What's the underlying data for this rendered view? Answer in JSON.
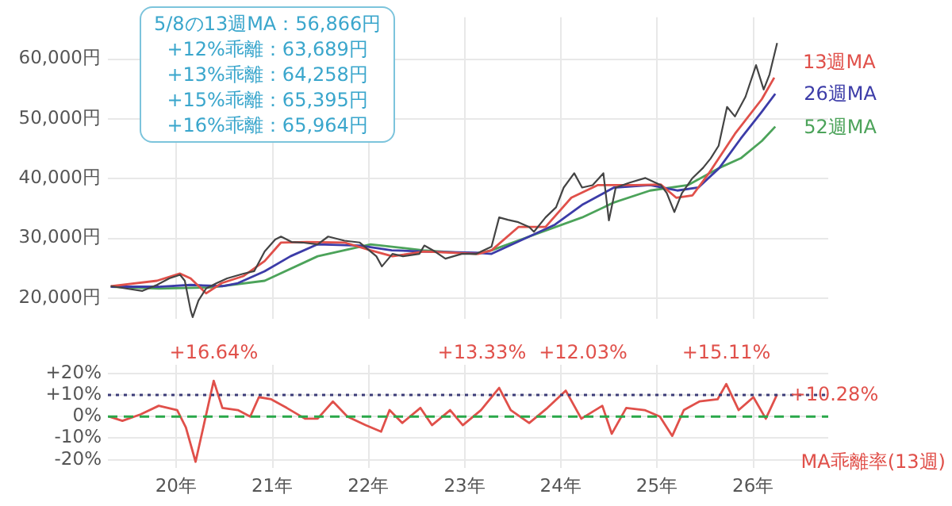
{
  "chart_data": [
    {
      "type": "line",
      "legend": false,
      "grid": true,
      "marker": "none",
      "tick_labels": "y",
      "annotations": [
        "5/8の13週MA：56,866円",
        "+12%乖離：63,689円",
        "+13%乖離：64,258円",
        "+15%乖離：65,395円",
        "+16%乖離：65,964円"
      ],
      "xlim": [
        "2019-04-16",
        "2026-10-12"
      ],
      "xticks": [
        {
          "value": "2020",
          "label": null
        },
        {
          "value": "2021",
          "label": null
        },
        {
          "value": "2022",
          "label": null
        },
        {
          "value": "2023",
          "label": null
        },
        {
          "value": "2024",
          "label": null
        },
        {
          "value": "2025",
          "label": null
        },
        {
          "value": "2026",
          "label": null
        }
      ],
      "ylim": [
        16500,
        67000
      ],
      "yticks": [
        {
          "value": 20000,
          "label": "20,000円"
        },
        {
          "value": 30000,
          "label": "30,000円"
        },
        {
          "value": 40000,
          "label": "40,000円"
        },
        {
          "value": 50000,
          "label": "50,000円"
        },
        {
          "value": 60000,
          "label": "60,000円"
        }
      ],
      "series": [
        {
          "color": "#444444",
          "x": [
            "2019-04-27",
            "2019-06-24",
            "2019-08-25",
            "2019-10-19",
            "2019-12-05",
            "2020-01-15",
            "2020-02-02",
            "2020-02-24",
            "2020-03-03",
            "2020-03-25",
            "2020-04-23",
            "2020-06-02",
            "2020-07-12",
            "2020-09-13",
            "2020-10-23",
            "2020-12-02",
            "2021-01-11",
            "2021-02-02",
            "2021-03-14",
            "2021-04-23",
            "2021-06-21",
            "2021-07-31",
            "2021-10-01",
            "2021-11-28",
            "2022-01-08",
            "2022-01-30",
            "2022-02-20",
            "2022-04-01",
            "2022-05-11",
            "2022-07-12",
            "2022-07-31",
            "2022-09-09",
            "2022-10-19",
            "2022-12-20",
            "2023-02-13",
            "2023-04-12",
            "2023-05-11",
            "2023-06-13",
            "2023-07-23",
            "2023-09-02",
            "2023-09-20",
            "2023-11-03",
            "2023-12-13",
            "2024-01-11",
            "2024-02-20",
            "2024-03-21",
            "2024-04-30",
            "2024-06-10",
            "2024-07-01",
            "2024-07-27",
            "2024-09-16",
            "2024-11-17",
            "2025-01-15",
            "2025-02-06",
            "2025-03-07",
            "2025-04-05",
            "2025-05-15",
            "2025-06-24",
            "2025-07-23",
            "2025-08-22",
            "2025-09-23",
            "2025-10-23",
            "2025-12-02",
            "2026-01-11",
            "2026-02-09",
            "2026-03-03",
            "2026-04-01"
          ],
          "values": [
            22000,
            21600,
            21200,
            22200,
            23300,
            23900,
            22900,
            18000,
            16800,
            19600,
            21600,
            22500,
            23300,
            24100,
            24500,
            27800,
            29800,
            30300,
            29400,
            29300,
            29000,
            30300,
            29600,
            29300,
            27800,
            27000,
            25300,
            27400,
            27000,
            27400,
            28800,
            27800,
            26600,
            27400,
            27400,
            28600,
            33500,
            33100,
            32700,
            31900,
            31100,
            33500,
            35200,
            38500,
            40900,
            38500,
            38900,
            40900,
            33000,
            38500,
            39300,
            40100,
            38900,
            37600,
            34400,
            37600,
            40100,
            41800,
            43400,
            45500,
            52000,
            50400,
            53700,
            59000,
            54900,
            57400,
            62700
          ]
        },
        {
          "name": "13週MA",
          "color": "#e0504a",
          "x": [
            "2019-04-27",
            "2019-10-19",
            "2020-01-15",
            "2020-02-24",
            "2020-04-23",
            "2020-06-21",
            "2020-09-13",
            "2020-12-02",
            "2021-02-02",
            "2021-05-11",
            "2021-10-01",
            "2022-01-08",
            "2022-04-01",
            "2022-07-31",
            "2023-02-20",
            "2023-04-12",
            "2023-07-23",
            "2023-11-03",
            "2024-02-09",
            "2024-05-19",
            "2024-10-08",
            "2025-01-15",
            "2025-03-14",
            "2025-05-15",
            "2025-07-16",
            "2025-10-23",
            "2026-02-02",
            "2026-03-21"
          ],
          "values": [
            22000,
            22900,
            24100,
            23300,
            20800,
            22500,
            23700,
            26200,
            29300,
            29400,
            29300,
            28000,
            27000,
            27800,
            27400,
            28000,
            31900,
            31900,
            36800,
            38900,
            38900,
            39000,
            36800,
            37200,
            40900,
            47500,
            53300,
            56900
          ]
        },
        {
          "name": "26週MA",
          "color": "#3c3ca8",
          "x": [
            "2019-04-27",
            "2019-10-26",
            "2020-02-24",
            "2020-06-24",
            "2020-08-22",
            "2020-12-02",
            "2021-03-10",
            "2021-06-21",
            "2021-11-28",
            "2022-03-29",
            "2022-07-27",
            "2023-02-13",
            "2023-04-12",
            "2023-09-02",
            "2023-12-09",
            "2024-03-21",
            "2024-07-20",
            "2024-12-05",
            "2025-03-18",
            "2025-06-06",
            "2025-08-25",
            "2025-11-14",
            "2026-02-02",
            "2026-03-25"
          ],
          "values": [
            21900,
            21900,
            22200,
            22000,
            22500,
            24500,
            27000,
            29000,
            28800,
            28000,
            27800,
            27600,
            27400,
            30300,
            32300,
            35600,
            38500,
            38900,
            38000,
            38500,
            41800,
            46700,
            51200,
            54200
          ]
        },
        {
          "name": "52週MA",
          "color": "#4ca35a",
          "x": [
            "2019-04-27",
            "2019-10-26",
            "2020-05-15",
            "2020-12-02",
            "2021-06-21",
            "2022-01-08",
            "2022-07-27",
            "2023-02-13",
            "2023-04-12",
            "2023-09-02",
            "2024-03-21",
            "2024-07-20",
            "2024-12-05",
            "2025-04-27",
            "2025-08-25",
            "2025-11-14",
            "2026-02-02",
            "2026-03-25"
          ],
          "values": [
            21900,
            21600,
            21800,
            22900,
            27000,
            29000,
            28000,
            27400,
            28000,
            30300,
            33500,
            36000,
            38000,
            38900,
            41800,
            43400,
            46300,
            48700
          ]
        }
      ]
    },
    {
      "type": "line",
      "legend": false,
      "grid": true,
      "marker": "none",
      "annotations": [
        {
          "text": "+16.64%",
          "x": "2020-05-22",
          "y": 16.64
        },
        {
          "text": "+13.33%",
          "x": "2023-05-11",
          "y": 13.33
        },
        {
          "text": "+12.03%",
          "x": "2024-01-19",
          "y": 12.03
        },
        {
          "text": "+15.11%",
          "x": "2025-09-20",
          "y": 15.11
        },
        {
          "text": "+10.28%",
          "x": "2026-04-01",
          "y": 10.28
        }
      ],
      "xlim": [
        "2019-04-16",
        "2026-10-12"
      ],
      "xticks": [
        {
          "value": "2020",
          "label": "20年"
        },
        {
          "value": "2021",
          "label": "21年"
        },
        {
          "value": "2022",
          "label": "22年"
        },
        {
          "value": "2023",
          "label": "23年"
        },
        {
          "value": "2024",
          "label": "24年"
        },
        {
          "value": "2025",
          "label": "25年"
        },
        {
          "value": "2026",
          "label": "26年"
        }
      ],
      "ylim": [
        -24,
        24
      ],
      "yticks": [
        {
          "value": -20,
          "label": "-20%"
        },
        {
          "value": -10,
          "label": "-10%"
        },
        {
          "value": 0,
          "label": "0%"
        },
        {
          "value": 10,
          "label": "+10%"
        },
        {
          "value": 20,
          "label": "+20%"
        }
      ],
      "ref_lines": [
        {
          "axis": "y",
          "value": 10,
          "color": "#3c3c78",
          "line_style": "dotted"
        },
        {
          "axis": "y",
          "value": 0,
          "color": "#2aa84a",
          "line_style": "dashed"
        }
      ],
      "series": [
        {
          "name": "MA乖離率(13週)",
          "color": "#e0504a",
          "x": [
            "2019-04-20",
            "2019-06-10",
            "2019-08-18",
            "2019-10-26",
            "2020-01-04",
            "2020-02-06",
            "2020-03-14",
            "2020-04-16",
            "2020-05-22",
            "2020-06-24",
            "2020-08-22",
            "2020-10-08",
            "2020-11-10",
            "2020-12-27",
            "2021-02-24",
            "2021-05-04",
            "2021-06-21",
            "2021-08-18",
            "2021-10-12",
            "2021-12-20",
            "2022-02-17",
            "2022-03-21",
            "2022-05-08",
            "2022-07-16",
            "2022-08-29",
            "2022-11-06",
            "2022-12-24",
            "2023-03-03",
            "2023-05-11",
            "2023-06-24",
            "2023-09-02",
            "2023-11-10",
            "2024-01-19",
            "2024-03-18",
            "2024-06-06",
            "2024-07-12",
            "2024-09-05",
            "2024-11-14",
            "2025-01-11",
            "2025-02-27",
            "2025-04-12",
            "2025-06-10",
            "2025-08-18",
            "2025-09-20",
            "2025-11-06",
            "2026-01-01",
            "2026-02-17",
            "2026-04-01"
          ],
          "values": [
            0,
            -2,
            1,
            5,
            3,
            -5,
            -21,
            -3,
            16.6,
            4,
            3,
            0,
            9,
            8,
            4,
            -1,
            -1,
            7,
            0,
            -4,
            -7,
            3,
            -3,
            4,
            -4,
            3,
            -4,
            3,
            13.3,
            3,
            -3,
            4,
            12,
            -1,
            5,
            -8,
            4,
            3,
            0,
            -9,
            3,
            7,
            8,
            15.1,
            3,
            9,
            -1,
            10.3
          ]
        }
      ]
    }
  ]
}
